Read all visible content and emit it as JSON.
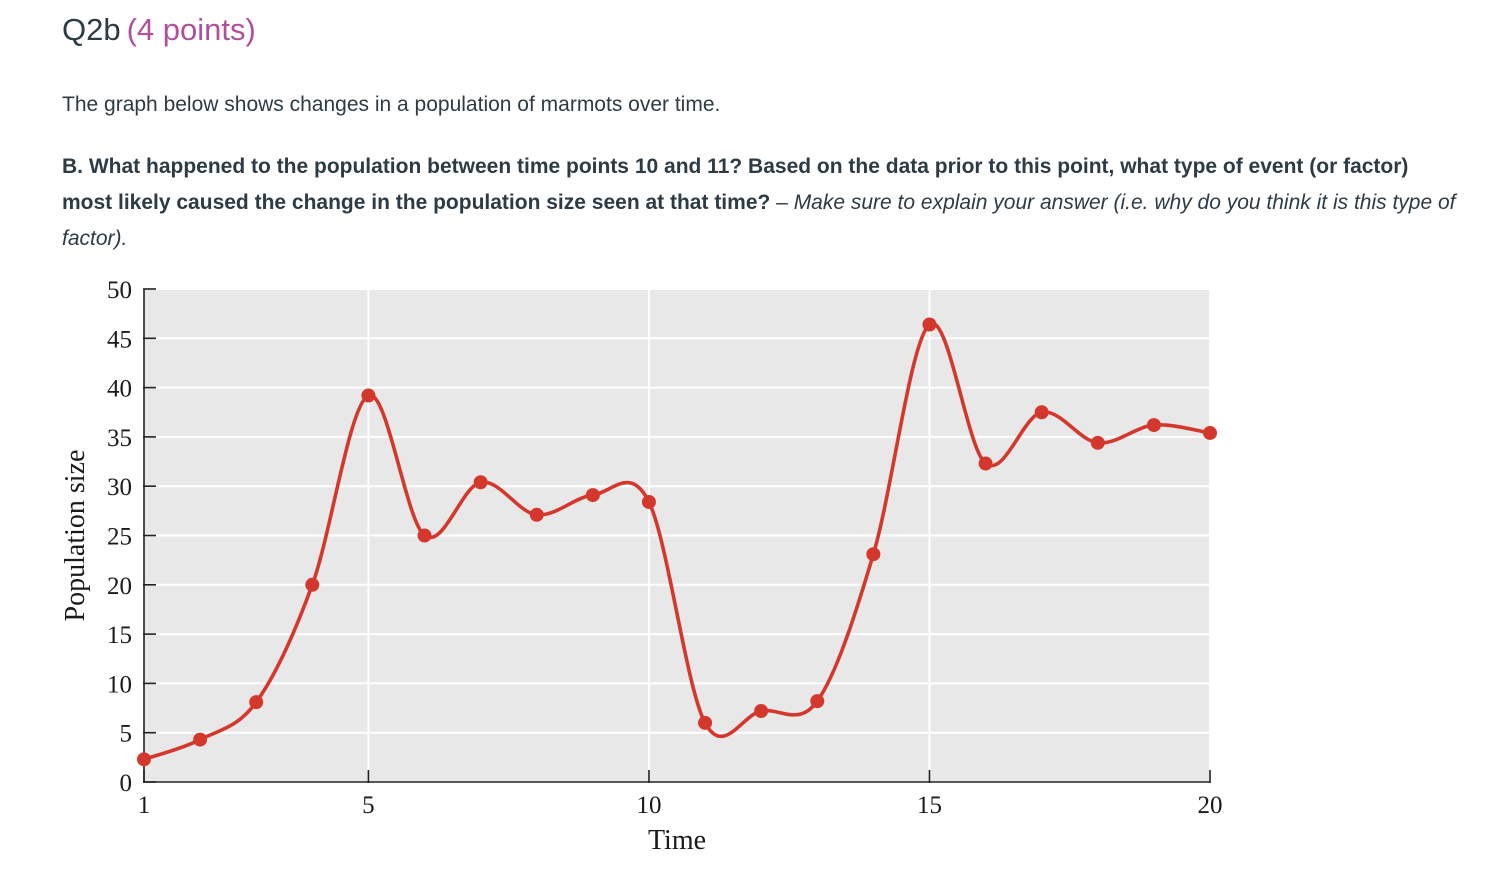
{
  "question": {
    "label": "Q2b",
    "points": "(4 points)",
    "intro": "The graph below shows changes in a population of marmots over time.",
    "prompt_bold": "B. What happened to the population between time points 10 and 11? Based on the data prior to this point, what type of event (or factor) most likely caused the change in the population size seen at that time?",
    "prompt_dash": " – ",
    "prompt_italic": "Make sure to explain your answer (i.e. why do you think it is this type of factor)."
  },
  "colors": {
    "line": "#d4382c",
    "marker": "#d4382c",
    "plot_background": "#e8e8e8",
    "grid": "#ffffff",
    "points_accent": "#b0509a"
  },
  "chart_data": {
    "type": "line",
    "xlabel": "Time",
    "ylabel": "Population size",
    "xlim": [
      1,
      20
    ],
    "ylim": [
      0,
      50
    ],
    "x_ticks": [
      1,
      5,
      10,
      15,
      20
    ],
    "y_ticks": [
      0,
      5,
      10,
      15,
      20,
      25,
      30,
      35,
      40,
      45,
      50
    ],
    "grid": true,
    "series": [
      {
        "x": [
          1,
          2,
          3,
          4,
          5,
          6,
          7,
          8,
          9,
          10,
          11,
          12,
          13,
          14,
          15,
          16,
          17,
          18,
          19,
          20
        ],
        "y": [
          2.3,
          4.3,
          8.1,
          20,
          39.2,
          25,
          30.4,
          27.1,
          29.1,
          28.4,
          6,
          7.2,
          8.2,
          23.1,
          46.4,
          32.3,
          37.5,
          34.4,
          36.2,
          35.4
        ]
      }
    ]
  }
}
